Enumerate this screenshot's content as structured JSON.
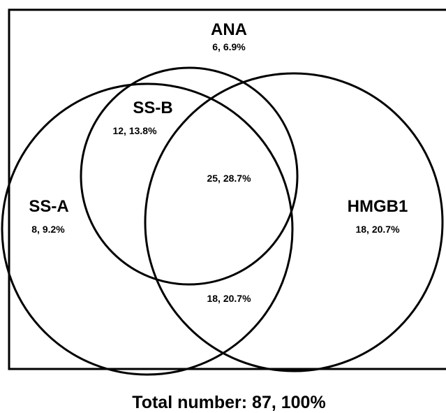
{
  "universe": {
    "label": "ANA",
    "count": "6, 6.9%"
  },
  "sets": {
    "ssa": {
      "label": "SS-A",
      "count": "8, 9.2%"
    },
    "ssb": {
      "label": "SS-B",
      "count": "12, 13.8%"
    },
    "hmgb1": {
      "label": "HMGB1",
      "count": "18, 20.7%"
    }
  },
  "overlaps": {
    "ssa_ssb_hmgb1": "25, 28.7%",
    "ssa_hmgb1": "18, 20.7%"
  },
  "total": "Total number: 87, 100%",
  "colors": {
    "stroke": "#000000",
    "background": "#ffffff"
  }
}
